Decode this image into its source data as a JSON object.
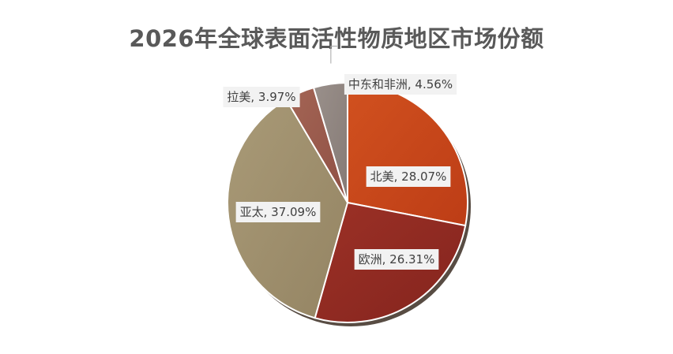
{
  "chart_data": {
    "type": "pie",
    "title": "2026年全球表面活性物质地区市场份额",
    "categories": [
      "北美",
      "欧洲",
      "亚太",
      "拉美",
      "中东和非洲"
    ],
    "values": [
      28.07,
      26.31,
      37.09,
      3.97,
      4.56
    ],
    "unit": "%",
    "labels": [
      "北美, 28.07%",
      "欧洲, 26.31%",
      "亚太, 37.09%",
      "拉美, 3.97%",
      "中东和非洲, 4.56%"
    ],
    "colors": [
      "#c9451a",
      "#922a22",
      "#a08f6c",
      "#9a5a4d",
      "#908580"
    ],
    "legend": "none"
  }
}
